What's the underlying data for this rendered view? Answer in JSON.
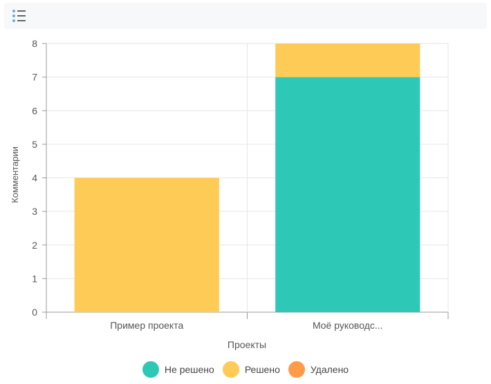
{
  "toolbar": {
    "menu_icon": "list-menu-icon"
  },
  "colors": {
    "Не решено": "#2ec9b6",
    "Решено": "#ffcb57",
    "Удалено": "#ff9a48",
    "grid": "#e6e6e6",
    "axis": "#999999"
  },
  "chart_data": {
    "type": "bar",
    "stacked": true,
    "categories": [
      "Пример проекта",
      "Моё руководс..."
    ],
    "series": [
      {
        "name": "Не решено",
        "values": [
          0,
          7
        ]
      },
      {
        "name": "Решено",
        "values": [
          4,
          1
        ]
      },
      {
        "name": "Удалено",
        "values": [
          0,
          0
        ]
      }
    ],
    "xlabel": "Проекты",
    "ylabel": "Комментарии",
    "ylim": [
      0,
      8
    ],
    "yticks": [
      0,
      1,
      2,
      3,
      4,
      5,
      6,
      7,
      8
    ],
    "grid": true,
    "legend_position": "bottom"
  }
}
